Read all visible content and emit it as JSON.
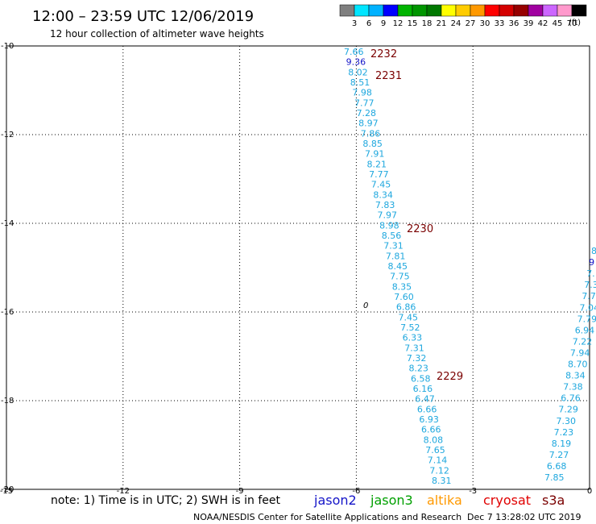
{
  "header": {
    "title": "12:00 – 23:59 UTC 12/06/2019",
    "subtitle": "12 hour collection of altimeter wave heights"
  },
  "legend": {
    "labels": [
      "3",
      "6",
      "9",
      "12",
      "15",
      "18",
      "21",
      "24",
      "27",
      "30",
      "33",
      "36",
      "39",
      "42",
      "45",
      "70"
    ],
    "unit": "(ft)",
    "colors": [
      "#7f7f7f",
      "#00e5ff",
      "#00b2ff",
      "#0000ff",
      "#00b400",
      "#009600",
      "#007800",
      "#ffff00",
      "#ffcc00",
      "#ff9900",
      "#ff0000",
      "#d40000",
      "#960000",
      "#a000a0",
      "#cc66ff",
      "#ff99cc",
      "#000000"
    ]
  },
  "map": {
    "lon_range": [
      -15,
      0
    ],
    "lat_range": [
      -20,
      -10
    ],
    "lon_ticks": [
      "-15",
      "-12",
      "-9",
      "-6",
      "-3",
      "0"
    ],
    "lat_ticks": [
      "-10",
      "-12",
      "-14",
      "-16",
      "-18",
      "-20"
    ],
    "grid": true,
    "track_color": "#1ea7de",
    "time_color": "#7a0000",
    "jason2_color": "#1414c8",
    "track_a": [
      {
        "v": "7.66",
        "c": "track"
      },
      {
        "v": "9.36",
        "c": "jason2"
      },
      {
        "v": "8.02",
        "c": "track"
      },
      {
        "v": "8.51",
        "c": "track"
      },
      {
        "v": "7.98",
        "c": "track"
      },
      {
        "v": "7.77",
        "c": "track"
      },
      {
        "v": "7.28",
        "c": "track"
      },
      {
        "v": "8.97",
        "c": "track"
      },
      {
        "v": "7.86",
        "c": "track"
      },
      {
        "v": "8.85",
        "c": "track"
      },
      {
        "v": "7.91",
        "c": "track"
      },
      {
        "v": "8.21",
        "c": "track"
      },
      {
        "v": "7.77",
        "c": "track"
      },
      {
        "v": "7.45",
        "c": "track"
      },
      {
        "v": "8.34",
        "c": "track"
      },
      {
        "v": "7.83",
        "c": "track"
      },
      {
        "v": "7.97",
        "c": "track"
      },
      {
        "v": "8.98",
        "c": "track"
      },
      {
        "v": "8.56",
        "c": "track"
      },
      {
        "v": "7.31",
        "c": "track"
      },
      {
        "v": "7.81",
        "c": "track"
      },
      {
        "v": "8.45",
        "c": "track"
      },
      {
        "v": "7.75",
        "c": "track"
      },
      {
        "v": "8.35",
        "c": "track"
      },
      {
        "v": "7.60",
        "c": "track"
      },
      {
        "v": "6.86",
        "c": "track"
      },
      {
        "v": "7.45",
        "c": "track"
      },
      {
        "v": "7.52",
        "c": "track"
      },
      {
        "v": "6.33",
        "c": "track"
      },
      {
        "v": "7.31",
        "c": "track"
      },
      {
        "v": "7.32",
        "c": "track"
      },
      {
        "v": "8.23",
        "c": "track"
      },
      {
        "v": "6.58",
        "c": "track"
      },
      {
        "v": "6.16",
        "c": "track"
      },
      {
        "v": "6.47",
        "c": "track"
      },
      {
        "v": "6.66",
        "c": "track"
      },
      {
        "v": "6.93",
        "c": "track"
      },
      {
        "v": "6.66",
        "c": "track"
      },
      {
        "v": "8.08",
        "c": "track"
      },
      {
        "v": "7.65",
        "c": "track"
      },
      {
        "v": "7.14",
        "c": "track"
      },
      {
        "v": "7.12",
        "c": "track"
      },
      {
        "v": "8.31",
        "c": "track"
      }
    ],
    "track_b": [
      {
        "v": "8",
        "c": "track"
      },
      {
        "v": "9",
        "c": "jason2"
      },
      {
        "v": "7.",
        "c": "track"
      },
      {
        "v": "7.3",
        "c": "track"
      },
      {
        "v": "7.7",
        "c": "track"
      },
      {
        "v": "7.04",
        "c": "track"
      },
      {
        "v": "7.79",
        "c": "track"
      },
      {
        "v": "6.94",
        "c": "track"
      },
      {
        "v": "7.22",
        "c": "track"
      },
      {
        "v": "7.94",
        "c": "track"
      },
      {
        "v": "8.70",
        "c": "track"
      },
      {
        "v": "8.34",
        "c": "track"
      },
      {
        "v": "7.38",
        "c": "track"
      },
      {
        "v": "6.76",
        "c": "track"
      },
      {
        "v": "7.29",
        "c": "track"
      },
      {
        "v": "7.30",
        "c": "track"
      },
      {
        "v": "7.23",
        "c": "track"
      },
      {
        "v": "8.19",
        "c": "track"
      },
      {
        "v": "7.27",
        "c": "track"
      },
      {
        "v": "6.68",
        "c": "track"
      },
      {
        "v": "7.85",
        "c": "track"
      }
    ],
    "times": [
      "2232",
      "2231",
      "2230",
      "2229"
    ],
    "island_marker": "0"
  },
  "footer": {
    "note": "note:  1) Time is in UTC;  2) SWH is in feet",
    "satellites": [
      {
        "name": "jason2",
        "color": "#1414c8"
      },
      {
        "name": "jason3",
        "color": "#00a000"
      },
      {
        "name": "altika",
        "color": "#ff9900"
      },
      {
        "name": "cryosat",
        "color": "#e00000"
      },
      {
        "name": "s3a",
        "color": "#7a0000"
      }
    ],
    "credit": "NOAA/NESDIS Center for Satellite Applications and Research",
    "timestamp": "Dec  7 13:28:02 UTC 2019"
  }
}
